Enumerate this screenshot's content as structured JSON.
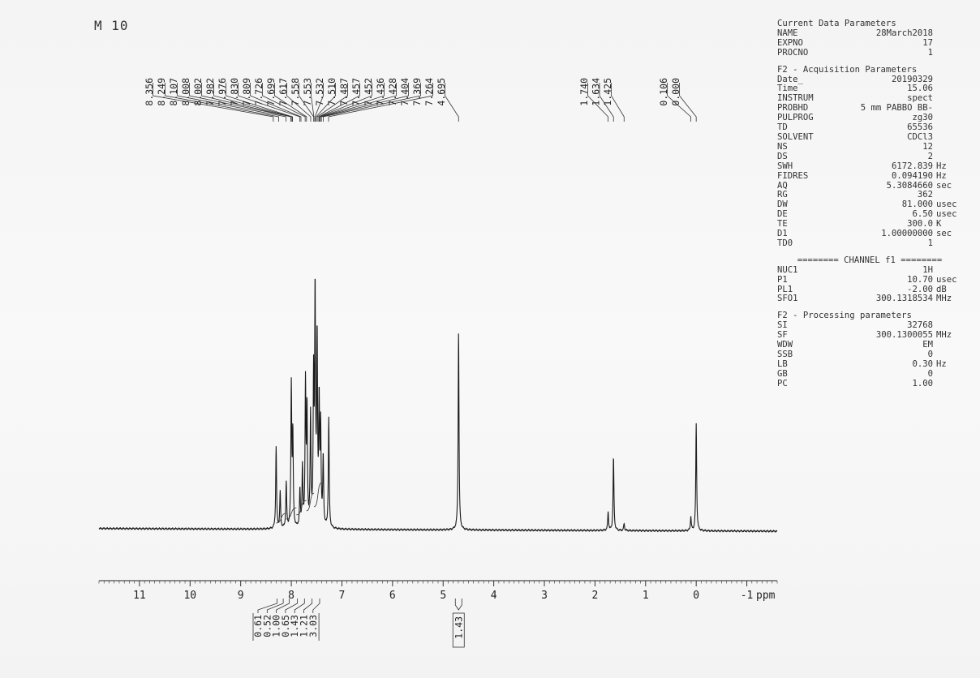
{
  "sample_label": "M 10",
  "parameters": [
    {
      "title": "Current Data Parameters",
      "rows": [
        {
          "name": "NAME",
          "value": "28March2018",
          "unit": ""
        },
        {
          "name": "EXPNO",
          "value": "17",
          "unit": ""
        },
        {
          "name": "PROCNO",
          "value": "1",
          "unit": ""
        }
      ]
    },
    {
      "title": "F2 - Acquisition Parameters",
      "rows": [
        {
          "name": "Date_",
          "value": "20190329",
          "unit": ""
        },
        {
          "name": "Time",
          "value": "15.06",
          "unit": ""
        },
        {
          "name": "INSTRUM",
          "value": "spect",
          "unit": ""
        },
        {
          "name": "PROBHD",
          "value": "5 mm PABBO BB-",
          "unit": ""
        },
        {
          "name": "PULPROG",
          "value": "zg30",
          "unit": ""
        },
        {
          "name": "TD",
          "value": "65536",
          "unit": ""
        },
        {
          "name": "SOLVENT",
          "value": "CDCl3",
          "unit": ""
        },
        {
          "name": "NS",
          "value": "12",
          "unit": ""
        },
        {
          "name": "DS",
          "value": "2",
          "unit": ""
        },
        {
          "name": "SWH",
          "value": "6172.839",
          "unit": "Hz"
        },
        {
          "name": "FIDRES",
          "value": "0.094190",
          "unit": "Hz"
        },
        {
          "name": "AQ",
          "value": "5.3084660",
          "unit": "sec"
        },
        {
          "name": "RG",
          "value": "362",
          "unit": ""
        },
        {
          "name": "DW",
          "value": "81.000",
          "unit": "usec"
        },
        {
          "name": "DE",
          "value": "6.50",
          "unit": "usec"
        },
        {
          "name": "TE",
          "value": "300.0",
          "unit": "K"
        },
        {
          "name": "D1",
          "value": "1.00000000",
          "unit": "sec"
        },
        {
          "name": "TD0",
          "value": "1",
          "unit": ""
        }
      ]
    },
    {
      "title": "======== CHANNEL f1 ========",
      "centered": true,
      "rows": [
        {
          "name": "NUC1",
          "value": "1H",
          "unit": ""
        },
        {
          "name": "P1",
          "value": "10.70",
          "unit": "usec"
        },
        {
          "name": "PL1",
          "value": "-2.00",
          "unit": "dB"
        },
        {
          "name": "SFO1",
          "value": "300.1318534",
          "unit": "MHz"
        }
      ]
    },
    {
      "title": "F2 - Processing parameters",
      "rows": [
        {
          "name": "SI",
          "value": "32768",
          "unit": ""
        },
        {
          "name": "SF",
          "value": "300.1300055",
          "unit": "MHz"
        },
        {
          "name": "WDW",
          "value": "EM",
          "unit": ""
        },
        {
          "name": "SSB",
          "value": "0",
          "unit": ""
        },
        {
          "name": "LB",
          "value": "0.30",
          "unit": "Hz"
        },
        {
          "name": "GB",
          "value": "0",
          "unit": ""
        },
        {
          "name": "PC",
          "value": "1.00",
          "unit": ""
        }
      ]
    }
  ],
  "chart_data": {
    "type": "line",
    "title": "",
    "xlabel": "ppm",
    "ylabel": "",
    "xlim": [
      11.8,
      -1.6
    ],
    "x_reversed": true,
    "grid": false,
    "x_ticks": [
      11,
      10,
      9,
      8,
      7,
      6,
      5,
      4,
      3,
      2,
      1,
      0,
      -1
    ],
    "peak_labels": {
      "group1": [
        "8.356",
        "8.249",
        "8.107",
        "8.008",
        "8.002",
        "7.982",
        "7.976",
        "7.830",
        "7.809",
        "7.726",
        "7.699",
        "7.617",
        "7.558",
        "7.553",
        "7.532",
        "7.510",
        "7.487",
        "7.457",
        "7.452",
        "7.436",
        "7.428",
        "7.404",
        "7.369",
        "7.264",
        "4.695"
      ],
      "group2": [
        "1.740",
        "1.634",
        "1.425"
      ],
      "group3": [
        "0.106",
        "0.000"
      ]
    },
    "peaks": [
      {
        "ppm": 8.3,
        "height": 0.36
      },
      {
        "ppm": 8.22,
        "height": 0.16
      },
      {
        "ppm": 8.1,
        "height": 0.2
      },
      {
        "ppm": 8.0,
        "height": 0.62
      },
      {
        "ppm": 7.97,
        "height": 0.4
      },
      {
        "ppm": 7.83,
        "height": 0.16
      },
      {
        "ppm": 7.78,
        "height": 0.26
      },
      {
        "ppm": 7.72,
        "height": 0.62
      },
      {
        "ppm": 7.69,
        "height": 0.5
      },
      {
        "ppm": 7.62,
        "height": 0.48
      },
      {
        "ppm": 7.56,
        "height": 0.62
      },
      {
        "ppm": 7.53,
        "height": 1.0
      },
      {
        "ppm": 7.49,
        "height": 0.8
      },
      {
        "ppm": 7.45,
        "height": 0.52
      },
      {
        "ppm": 7.42,
        "height": 0.42
      },
      {
        "ppm": 7.37,
        "height": 0.3
      },
      {
        "ppm": 7.26,
        "height": 0.48
      },
      {
        "ppm": 4.695,
        "height": 0.87
      },
      {
        "ppm": 1.74,
        "height": 0.08
      },
      {
        "ppm": 1.634,
        "height": 0.32
      },
      {
        "ppm": 1.425,
        "height": 0.03
      },
      {
        "ppm": 0.106,
        "height": 0.06
      },
      {
        "ppm": 0.0,
        "height": 0.47
      }
    ],
    "integrals": [
      {
        "ppm": 8.28,
        "value": "0.61"
      },
      {
        "ppm": 8.16,
        "value": "0.52"
      },
      {
        "ppm": 8.04,
        "value": "1.00"
      },
      {
        "ppm": 7.88,
        "value": "0.65"
      },
      {
        "ppm": 7.74,
        "value": "1.43"
      },
      {
        "ppm": 7.59,
        "value": "1.21"
      },
      {
        "ppm": 7.44,
        "value": "3.03"
      },
      {
        "ppm": 4.695,
        "value": "1.43"
      }
    ]
  }
}
